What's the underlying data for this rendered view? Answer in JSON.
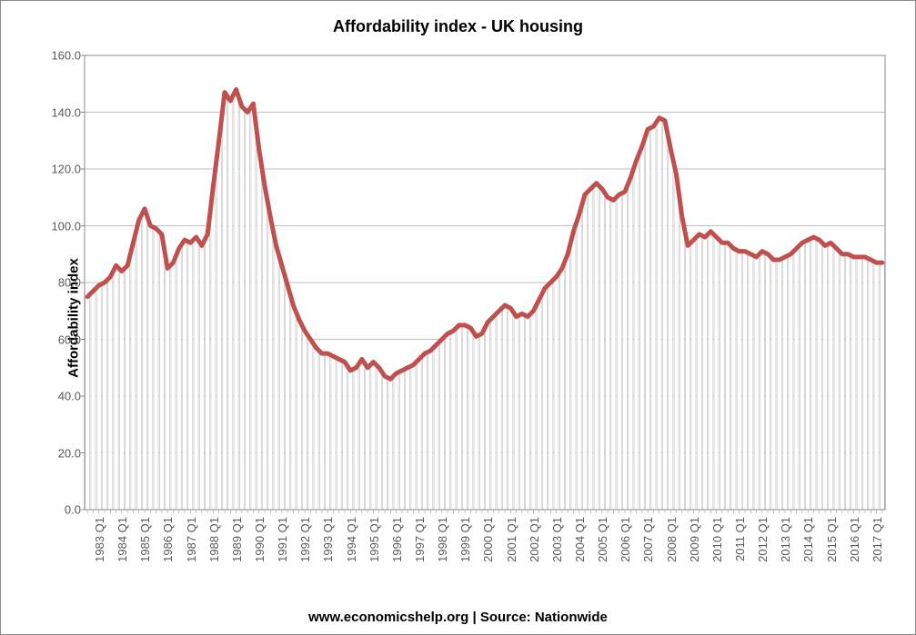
{
  "chart": {
    "type": "line-with-bars",
    "title": "Affordability index - UK housing",
    "title_fontsize": 18,
    "ylabel": "Affordability index",
    "ylabel_fontsize": 15,
    "caption": "www.economicshelp.org | Source: Nationwide",
    "caption_fontsize": 15,
    "background_color": "#ffffff",
    "plot_border_color": "#8a8a8a",
    "grid_color": "#bfbfbf",
    "bar_fill": "#ffffff",
    "bar_stroke": "#bfbfbf",
    "bar_stroke_width": 0.6,
    "line_color": "#c0504d",
    "line_stroke": "#ffffff",
    "line_stroke_width": 0,
    "line_width": 5,
    "tick_font_color": "#595959",
    "tick_fontsize": 13,
    "ylim": [
      0,
      160
    ],
    "ytick_step": 20,
    "yticks": [
      "0.0",
      "20.0",
      "40.0",
      "60.0",
      "80.0",
      "100.0",
      "120.0",
      "140.0",
      "160.0"
    ],
    "xlabels_visible": [
      "1983 Q1",
      "1984 Q1",
      "1985 Q1",
      "1986 Q1",
      "1987 Q1",
      "1988 Q1",
      "1989 Q1",
      "1990 Q1",
      "1991 Q1",
      "1992 Q1",
      "1993 Q1",
      "1994 Q1",
      "1995 Q1",
      "1996 Q1",
      "1997 Q1",
      "1998 Q1",
      "1999 Q1",
      "2000 Q1",
      "2001 Q1",
      "2002 Q1",
      "2003 Q1",
      "2004 Q1",
      "2005 Q1",
      "2006 Q1",
      "2007 Q1",
      "2008 Q1",
      "2009 Q1",
      "2010 Q1",
      "2011 Q1",
      "2012 Q1",
      "2013 Q1",
      "2014 Q1",
      "2015 Q1",
      "2016 Q1",
      "2017 Q1"
    ],
    "xlabel_every": 4,
    "values": [
      75,
      77,
      79,
      80,
      82,
      86,
      84,
      86,
      94,
      102,
      106,
      100,
      99,
      97,
      85,
      87,
      92,
      95,
      94,
      96,
      93,
      97,
      114,
      130,
      147,
      144,
      148,
      142,
      140,
      143,
      127,
      114,
      103,
      93,
      86,
      79,
      72,
      67,
      63,
      60,
      57,
      55,
      55,
      54,
      53,
      52,
      49,
      50,
      53,
      50,
      52,
      50,
      47,
      46,
      48,
      49,
      50,
      51,
      53,
      55,
      56,
      58,
      60,
      62,
      63,
      65,
      65,
      64,
      61,
      62,
      66,
      68,
      70,
      72,
      71,
      68,
      69,
      68,
      70,
      74,
      78,
      80,
      82,
      85,
      90,
      98,
      104,
      111,
      113,
      115,
      113,
      110,
      109,
      111,
      112,
      117,
      123,
      128,
      134,
      135,
      138,
      137,
      127,
      118,
      103,
      93,
      95,
      97,
      96,
      98,
      96,
      94,
      94,
      92,
      91,
      91,
      90,
      89,
      91,
      90,
      88,
      88,
      89,
      90,
      92,
      94,
      95,
      96,
      95,
      93,
      94,
      92,
      90,
      90,
      89,
      89,
      89,
      88,
      87,
      87
    ]
  }
}
